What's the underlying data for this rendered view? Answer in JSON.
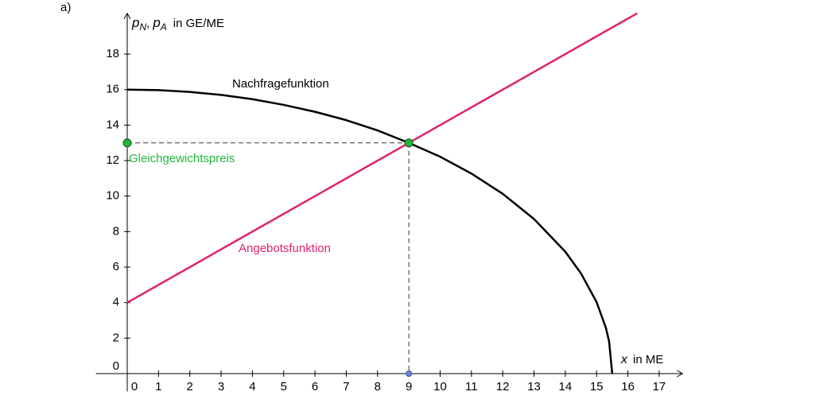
{
  "chart_data": {
    "type": "line",
    "panel_label": "a)",
    "y_label_parts": [
      "p",
      "N",
      ",",
      "p",
      "A",
      "in GE/ME"
    ],
    "x_label_parts": [
      "x",
      "in ME"
    ],
    "xlim": [
      -1,
      18
    ],
    "ylim": [
      -1,
      20.3
    ],
    "xticks": [
      0,
      1,
      2,
      3,
      4,
      5,
      6,
      7,
      8,
      9,
      10,
      11,
      12,
      13,
      14,
      15,
      16,
      17
    ],
    "yticks": [
      0,
      2,
      4,
      6,
      8,
      10,
      12,
      14,
      16,
      18
    ],
    "series": [
      {
        "name": "Nachfragefunktion",
        "color": "#000000",
        "x": [
          0,
          1,
          2,
          3,
          4,
          5,
          6,
          7,
          8,
          9,
          10,
          11,
          12,
          13,
          14,
          14.5,
          15,
          15.3,
          15.4,
          15.5
        ],
        "values": [
          16,
          15.97,
          15.87,
          15.7,
          15.46,
          15.14,
          14.75,
          14.28,
          13.7,
          13,
          12.22,
          11.27,
          10.13,
          8.71,
          6.87,
          5.65,
          4.03,
          2.56,
          1.81,
          0
        ]
      },
      {
        "name": "Angebotsfunktion",
        "color": "#e0206e",
        "x": [
          0,
          9,
          16.3
        ],
        "values": [
          4,
          13,
          20.3
        ]
      }
    ],
    "points": [
      {
        "x": 9,
        "y": 13,
        "color": "#22b83a"
      },
      {
        "x": 0,
        "y": 13,
        "color": "#22b83a"
      },
      {
        "x": 9,
        "y": 0,
        "color": "#6a7fe0"
      }
    ],
    "annotations": [
      {
        "text": "Gleichgewichtspreis",
        "color": "#22b83a"
      }
    ]
  }
}
